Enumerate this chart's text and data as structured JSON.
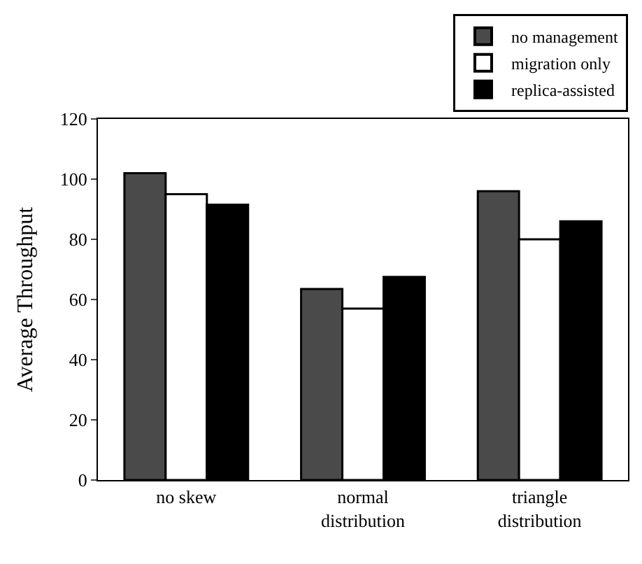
{
  "chart_data": {
    "type": "bar",
    "ylabel": "Average Throughput",
    "categories": [
      "no skew",
      "normal\ndistribution",
      "triangle\ndistribution"
    ],
    "series": [
      {
        "name": "no management",
        "color": "#4a4a4a",
        "values": [
          102,
          63.5,
          96
        ]
      },
      {
        "name": "migration only",
        "color": "#ffffff",
        "values": [
          95,
          57,
          80
        ]
      },
      {
        "name": "replica-assisted",
        "color": "#000000",
        "values": [
          91.5,
          67.5,
          86
        ]
      }
    ],
    "ylim": [
      0,
      120
    ],
    "yticks": [
      0,
      20,
      40,
      60,
      80,
      100,
      120
    ],
    "grid": false,
    "legend": "top right"
  }
}
